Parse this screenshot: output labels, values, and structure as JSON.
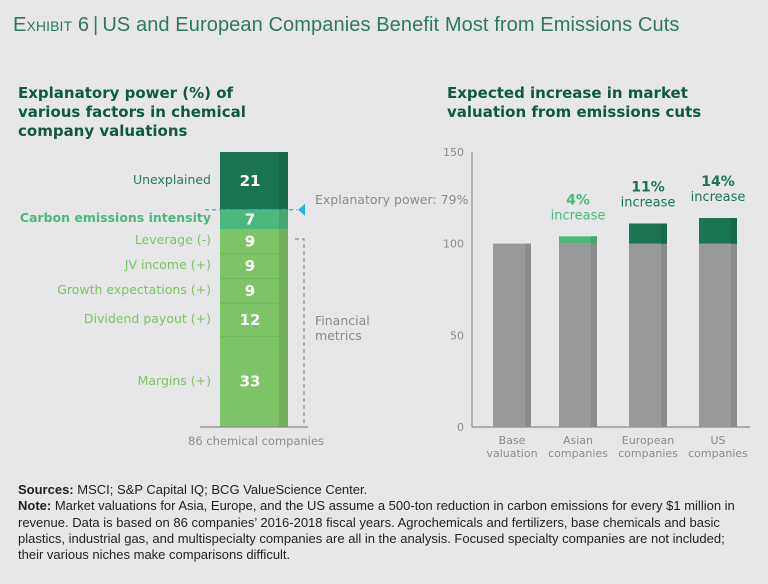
{
  "header": {
    "exhibit_label": "Exhibit 6",
    "title": "US and European Companies Benefit Most from Emissions Cuts"
  },
  "colors": {
    "background": "#e7e7e9",
    "dark_green": "#1a7652",
    "medium_green": "#4cb87c",
    "light_green": "#7cc465",
    "gray_bar": "#999999",
    "callout_blue": "#2bb3d8",
    "title_green": "#0f5a3c"
  },
  "chart_data": [
    {
      "type": "bar",
      "stacked": true,
      "title": "Explanatory power (%) of various factors in chemical company valuations",
      "xlabel": "86 chemical companies",
      "segments": [
        {
          "label": "Unexplained",
          "value": 21,
          "group": "unexplained"
        },
        {
          "label": "Carbon emissions intensity",
          "value": 7,
          "group": "carbon"
        },
        {
          "label": "Leverage (-)",
          "value": 9,
          "group": "financial"
        },
        {
          "label": "JV income (+)",
          "value": 9,
          "group": "financial"
        },
        {
          "label": "Growth expectations (+)",
          "value": 9,
          "group": "financial"
        },
        {
          "label": "Dividend payout (+)",
          "value": 12,
          "group": "financial"
        },
        {
          "label": "Margins (+)",
          "value": 33,
          "group": "financial"
        }
      ],
      "annotations": {
        "explanatory_power": "Explanatory power: 79%",
        "financial_metrics": "Financial metrics"
      }
    },
    {
      "type": "bar",
      "stacked": true,
      "title": "Expected increase in market valuation from emissions cuts",
      "categories": [
        "Base valuation",
        "Asian companies",
        "European companies",
        "US companies"
      ],
      "category_lines": [
        [
          "Base",
          "valuation"
        ],
        [
          "Asian",
          "companies"
        ],
        [
          "European",
          "companies"
        ],
        [
          "US",
          "companies"
        ]
      ],
      "series": [
        {
          "name": "Base",
          "values": [
            100,
            100,
            100,
            100
          ]
        },
        {
          "name": "Increase",
          "values": [
            0,
            4,
            11,
            14
          ]
        }
      ],
      "increase_labels": [
        null,
        {
          "pct": "4%",
          "text": "increase"
        },
        {
          "pct": "11%",
          "text": "increase"
        },
        {
          "pct": "14%",
          "text": "increase"
        }
      ],
      "yticks": [
        0,
        50,
        100,
        150
      ],
      "ylim": [
        0,
        150
      ],
      "xlabel": "",
      "ylabel": ""
    }
  ],
  "footer": {
    "sources_label": "Sources:",
    "sources_text": " MSCI; S&P Capital IQ; BCG ValueScience Center.",
    "note_label": "Note:",
    "note_text": " Market valuations for Asia, Europe, and the US assume a 500-ton reduction in carbon emissions for every $1 million in revenue. Data is based on 86 companies’ 2016-2018 fiscal years. Agrochemicals and fertilizers, base chemicals and basic plastics, industrial gas, and multispecialty companies are all in the analysis. Focused specialty companies are not included; their various niches make comparisons difficult."
  }
}
